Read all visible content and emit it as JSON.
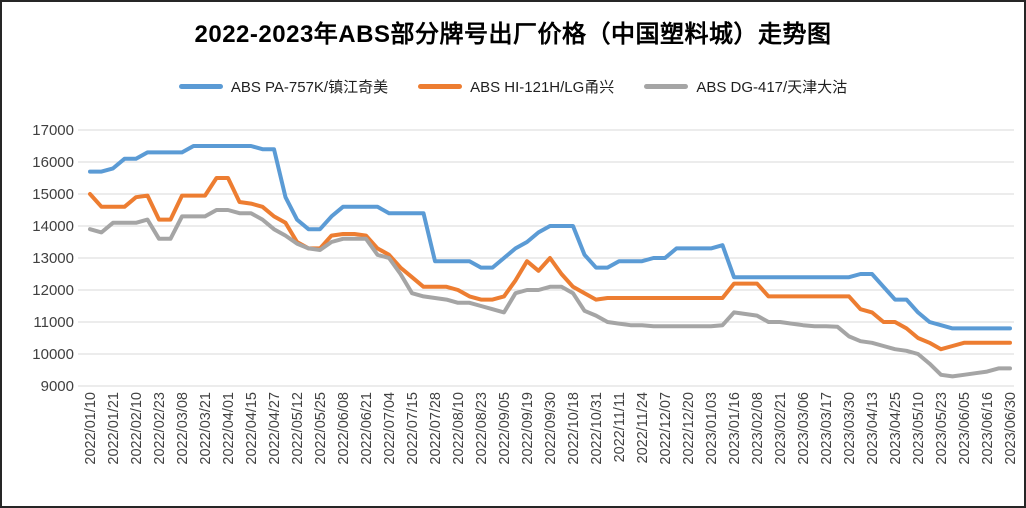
{
  "title": "2022-2023年ABS部分牌号出厂价格（中国塑料城）走势图",
  "legend": [
    {
      "label": "ABS PA-757K/镇江奇美",
      "color": "#5B9BD5"
    },
    {
      "label": "ABS HI-121H/LG甬兴",
      "color": "#ED7D31"
    },
    {
      "label": "ABS DG-417/天津大沽",
      "color": "#A5A5A5"
    }
  ],
  "chart_data": {
    "type": "line",
    "title": "2022-2023年ABS部分牌号出厂价格（中国塑料城）走势图",
    "xlabel": "",
    "ylabel": "",
    "grid": true,
    "legend_position": "top",
    "y_axis": {
      "min": 9000,
      "max": 17000,
      "step": 1000,
      "tick_labels": [
        "17000",
        "16000",
        "15000",
        "14000",
        "13000",
        "12000",
        "11000",
        "10000",
        "9000"
      ]
    },
    "categories": [
      "2022/01/10",
      "2022/01/21",
      "2022/02/10",
      "2022/02/23",
      "2022/03/08",
      "2022/03/21",
      "2022/04/01",
      "2022/04/15",
      "2022/04/27",
      "2022/05/12",
      "2022/05/25",
      "2022/06/08",
      "2022/06/21",
      "2022/07/04",
      "2022/07/15",
      "2022/07/28",
      "2022/08/10",
      "2022/08/23",
      "2022/09/05",
      "2022/09/19",
      "2022/09/30",
      "2022/10/18",
      "2022/10/31",
      "2022/11/11",
      "2022/11/24",
      "2022/12/07",
      "2022/12/20",
      "2023/01/03",
      "2023/01/16",
      "2023/02/08",
      "2023/02/21",
      "2023/03/06",
      "2023/03/17",
      "2023/03/30",
      "2023/04/13",
      "2023/04/25",
      "2023/05/10",
      "2023/05/23",
      "2023/06/05",
      "2023/06/16",
      "2023/06/30"
    ],
    "sampling_note": "values sampled at each category tick and at the midpoint between ticks (2 points per interval, 81 points total)",
    "series": [
      {
        "name": "ABS PA-757K/镇江奇美",
        "color": "#5B9BD5",
        "values": [
          15700,
          15700,
          15800,
          16100,
          16100,
          16300,
          16300,
          16300,
          16300,
          16500,
          16500,
          16500,
          16500,
          16500,
          16500,
          16400,
          16400,
          14900,
          14200,
          13900,
          13900,
          14300,
          14600,
          14600,
          14600,
          14600,
          14400,
          14400,
          14400,
          14400,
          12900,
          12900,
          12900,
          12900,
          12700,
          12700,
          13000,
          13300,
          13500,
          13800,
          14000,
          14000,
          14000,
          13100,
          12700,
          12700,
          12900,
          12900,
          12900,
          13000,
          13000,
          13300,
          13300,
          13300,
          13300,
          13400,
          12400,
          12400,
          12400,
          12400,
          12400,
          12400,
          12400,
          12400,
          12400,
          12400,
          12400,
          12500,
          12500,
          12100,
          11700,
          11700,
          11300,
          11000,
          10900,
          10800,
          10800,
          10800,
          10800,
          10800,
          10800
        ]
      },
      {
        "name": "ABS HI-121H/LG甬兴",
        "color": "#ED7D31",
        "values": [
          15000,
          14600,
          14600,
          14600,
          14900,
          14950,
          14200,
          14200,
          14950,
          14950,
          14950,
          15500,
          15500,
          14750,
          14700,
          14600,
          14300,
          14100,
          13500,
          13300,
          13300,
          13700,
          13750,
          13750,
          13700,
          13300,
          13100,
          12700,
          12400,
          12100,
          12100,
          12100,
          12000,
          11800,
          11700,
          11700,
          11800,
          12300,
          12900,
          12600,
          13000,
          12500,
          12100,
          11900,
          11700,
          11750,
          11750,
          11750,
          11750,
          11750,
          11750,
          11750,
          11750,
          11750,
          11750,
          11750,
          12200,
          12200,
          12200,
          11800,
          11800,
          11800,
          11800,
          11800,
          11800,
          11800,
          11800,
          11400,
          11300,
          11000,
          11000,
          10800,
          10500,
          10350,
          10150,
          10250,
          10350,
          10350,
          10350,
          10350,
          10350
        ]
      },
      {
        "name": "ABS DG-417/天津大沽",
        "color": "#A5A5A5",
        "values": [
          13900,
          13800,
          14100,
          14100,
          14100,
          14200,
          13600,
          13600,
          14300,
          14300,
          14300,
          14500,
          14500,
          14400,
          14400,
          14200,
          13900,
          13700,
          13450,
          13300,
          13250,
          13500,
          13600,
          13600,
          13600,
          13100,
          13000,
          12500,
          11900,
          11800,
          11750,
          11700,
          11600,
          11600,
          11500,
          11400,
          11300,
          11900,
          12000,
          12000,
          12100,
          12100,
          11900,
          11350,
          11200,
          11000,
          10950,
          10900,
          10900,
          10870,
          10870,
          10870,
          10870,
          10870,
          10870,
          10900,
          11300,
          11250,
          11200,
          11000,
          11000,
          10950,
          10900,
          10870,
          10870,
          10850,
          10550,
          10400,
          10350,
          10250,
          10150,
          10100,
          10000,
          9700,
          9350,
          9300,
          9350,
          9400,
          9450,
          9550,
          9550
        ]
      }
    ]
  }
}
